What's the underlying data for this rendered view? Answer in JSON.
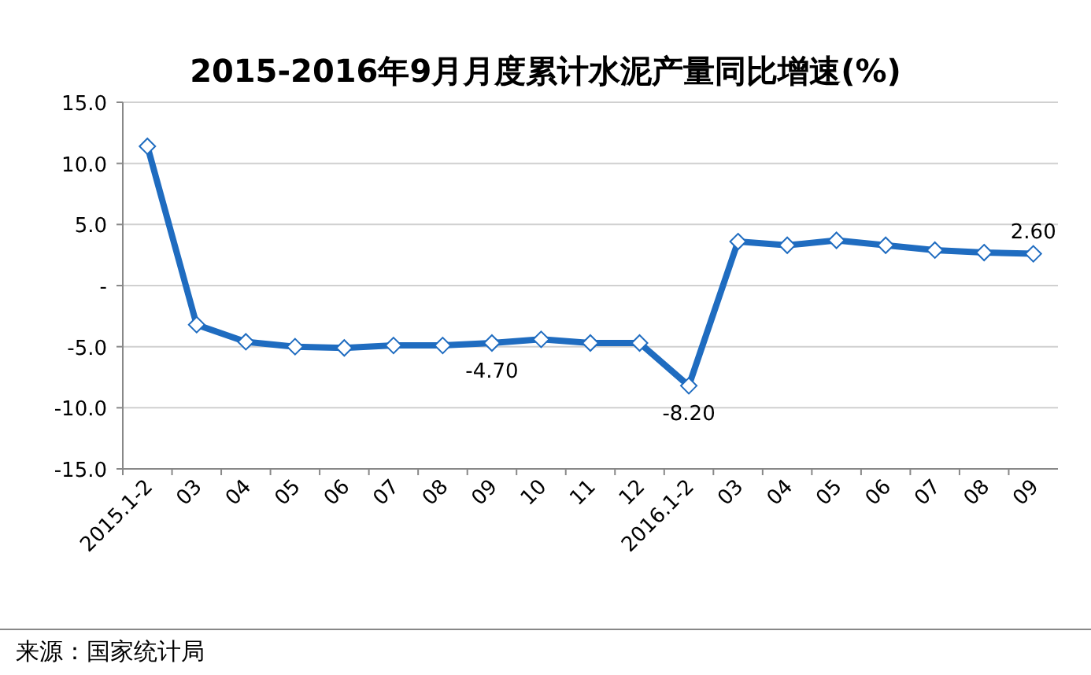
{
  "chart_data": {
    "type": "line",
    "title": "2015-2016年9月月度累计水泥产量同比增速(%)",
    "categories": [
      "2015.1-2",
      "03",
      "04",
      "05",
      "06",
      "07",
      "08",
      "09",
      "10",
      "11",
      "12",
      "2016.1-2",
      "03",
      "04",
      "05",
      "06",
      "07",
      "08",
      "09"
    ],
    "values": [
      11.4,
      -3.2,
      -4.6,
      -5.0,
      -5.1,
      -4.9,
      -4.9,
      -4.7,
      -4.4,
      -4.7,
      -4.7,
      -8.2,
      3.6,
      3.3,
      3.7,
      3.3,
      2.9,
      2.7,
      2.6
    ],
    "value_labels": [
      null,
      null,
      null,
      null,
      null,
      null,
      null,
      "-4.70",
      null,
      null,
      null,
      "-8.20",
      null,
      null,
      null,
      null,
      null,
      null,
      "2.60"
    ],
    "color": "#1f6cc0",
    "marker": "diamond",
    "ylim": [
      -15,
      15
    ],
    "yticks": [
      {
        "value": 15,
        "label": "15.0"
      },
      {
        "value": 10,
        "label": "10.0"
      },
      {
        "value": 5,
        "label": "5.0"
      },
      {
        "value": 0,
        "label": "-"
      },
      {
        "value": -5,
        "label": "-5.0"
      },
      {
        "value": -10,
        "label": "-10.0"
      },
      {
        "value": -15,
        "label": "-15.0"
      }
    ],
    "grid": "y",
    "annotations": [
      "来源：国家统计局"
    ]
  }
}
